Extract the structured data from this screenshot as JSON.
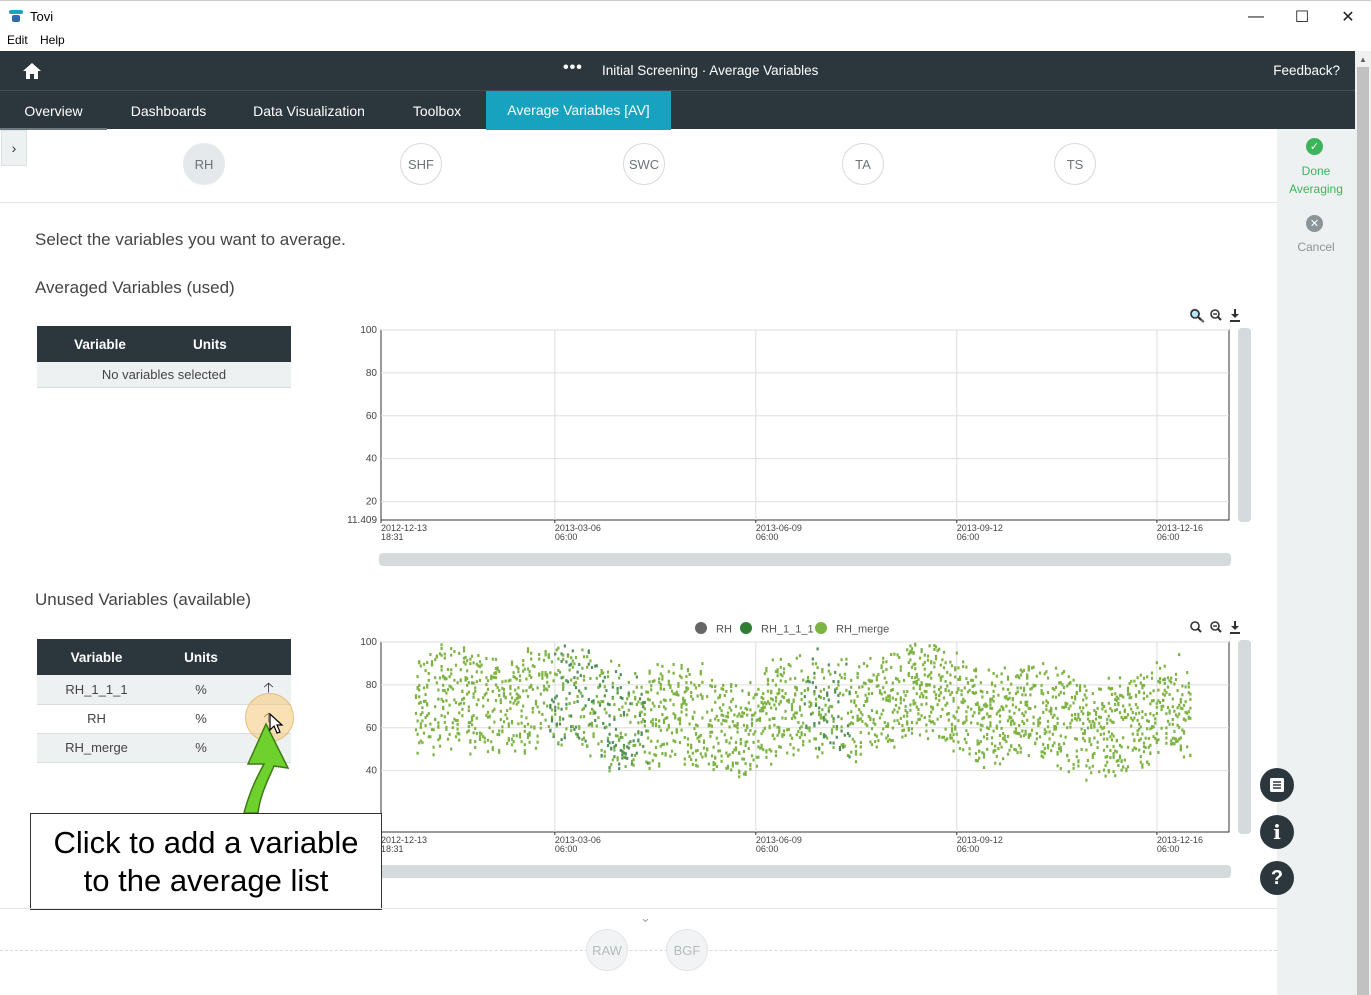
{
  "window": {
    "title": "Tovi",
    "menu": [
      "Edit",
      "Help"
    ]
  },
  "header": {
    "title": "Initial Screening · Average Variables",
    "feedback": "Feedback?"
  },
  "tabs": [
    {
      "label": "Overview"
    },
    {
      "label": "Dashboards"
    },
    {
      "label": "Data Visualization"
    },
    {
      "label": "Toolbox"
    },
    {
      "label": "Average Variables [AV]",
      "active": true
    }
  ],
  "variable_groups": [
    "RH",
    "SHF",
    "SWC",
    "TA",
    "TS"
  ],
  "selected_group": "RH",
  "right_panel": {
    "done": "Done Averaging",
    "cancel": "Cancel"
  },
  "main": {
    "instruction": "Select the variables you want to average.",
    "used_title": "Averaged Variables (used)",
    "unused_title": "Unused Variables (available)",
    "table_headers": [
      "Variable",
      "Units"
    ],
    "used_empty": "No variables selected",
    "unused_rows": [
      {
        "variable": "RH_1_1_1",
        "units": "%"
      },
      {
        "variable": "RH",
        "units": "%"
      },
      {
        "variable": "RH_merge",
        "units": "%"
      }
    ]
  },
  "callout": {
    "line1": "Click to add a variable",
    "line2": "to the average list"
  },
  "bottom": {
    "buttons": [
      "RAW",
      "BGF"
    ]
  },
  "colors": {
    "dark": "#2b373d",
    "accent": "#17a2c0",
    "done": "#3cb55a",
    "rh": "#666666",
    "rh_1_1_1": "#2e7d32",
    "rh_merge": "#7cb342"
  },
  "chart_data": [
    {
      "type": "scatter",
      "title": "",
      "ylim": [
        11.409,
        100
      ],
      "yticks": [
        "100",
        "80",
        "60",
        "40",
        "20",
        "11.409"
      ],
      "xticks": [
        [
          "2012-12-13",
          "18:31"
        ],
        [
          "2013-03-06",
          "06:00"
        ],
        [
          "2013-06-09",
          "06:00"
        ],
        [
          "2013-09-12",
          "06:00"
        ],
        [
          "2013-12-16",
          "06:00"
        ]
      ],
      "series": []
    },
    {
      "type": "scatter",
      "title": "",
      "ylim": [
        11.409,
        100
      ],
      "yticks": [
        "100",
        "80",
        "60",
        "40"
      ],
      "xticks": [
        [
          "2012-12-13",
          "18:31"
        ],
        [
          "2013-03-06",
          "06:00"
        ],
        [
          "2013-06-09",
          "06:00"
        ],
        [
          "2013-09-12",
          "06:00"
        ],
        [
          "2013-12-16",
          "06:00"
        ]
      ],
      "legend": [
        "RH",
        "RH_1_1_1",
        "RH_merge"
      ],
      "x_range": [
        "2012-12-13",
        "2013-12-31"
      ],
      "y_range_approx": [
        25,
        100
      ]
    }
  ]
}
